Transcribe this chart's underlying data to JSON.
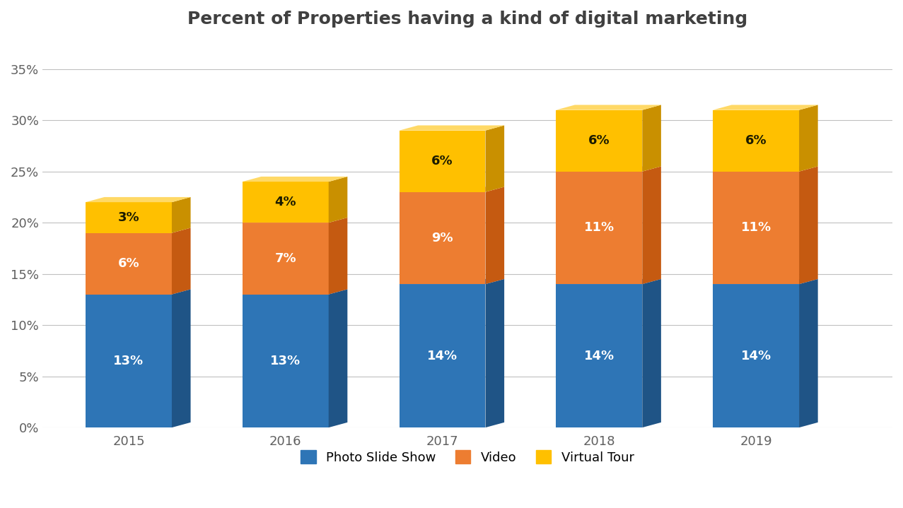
{
  "title": "Percent of Properties having a kind of digital marketing",
  "years": [
    "2015",
    "2016",
    "2017",
    "2018",
    "2019"
  ],
  "photo_slide_show": [
    13,
    13,
    14,
    14,
    14
  ],
  "video": [
    6,
    7,
    9,
    11,
    11
  ],
  "virtual_tour": [
    3,
    4,
    6,
    6,
    6
  ],
  "colors": {
    "photo_slide_show": "#2E75B6",
    "photo_slide_show_side": "#1F5486",
    "photo_slide_show_top": "#4A90D9",
    "video": "#ED7D31",
    "video_side": "#C55A11",
    "video_top": "#F4B183",
    "virtual_tour": "#FFC000",
    "virtual_tour_side": "#C99000",
    "virtual_tour_top": "#FFD966"
  },
  "legend_labels": [
    "Photo Slide Show",
    "Video",
    "Virtual Tour"
  ],
  "ylim": [
    0,
    37
  ],
  "yticks": [
    0,
    5,
    10,
    15,
    20,
    25,
    30,
    35
  ],
  "ytick_labels": [
    "0%",
    "5%",
    "10%",
    "15%",
    "20%",
    "25%",
    "30%",
    "35%"
  ],
  "bar_width": 0.55,
  "depth": 0.15,
  "title_fontsize": 18,
  "label_fontsize": 13,
  "tick_fontsize": 13,
  "legend_fontsize": 13,
  "background_color": "#FFFFFF",
  "grid_color": "#C0C0C0",
  "title_color": "#404040",
  "tick_color": "#606060"
}
